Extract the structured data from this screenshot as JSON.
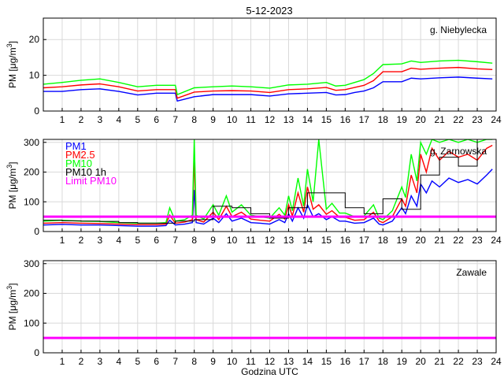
{
  "title": "5-12-2023",
  "colors": {
    "pm1": "#0000ff",
    "pm25": "#ff0000",
    "pm10": "#00ff00",
    "pm10_1h": "#000000",
    "limit": "#ff00ff",
    "grid": "#d9d9d9"
  },
  "chart_data": [
    {
      "type": "line",
      "station": "g. Niebylecka",
      "ylabel": "PM [μg/m³]",
      "xlabel": "",
      "xlim": [
        0,
        24
      ],
      "ylim": [
        0,
        26
      ],
      "xticks": [
        1,
        2,
        3,
        4,
        5,
        6,
        7,
        8,
        9,
        10,
        11,
        12,
        13,
        14,
        15,
        16,
        17,
        18,
        19,
        20,
        21,
        22,
        23,
        24
      ],
      "yticks": [
        0,
        10,
        20
      ],
      "legend": [],
      "limit": null,
      "series": [
        {
          "name": "PM1",
          "key": "pm1",
          "x": [
            0,
            1,
            2,
            3,
            4,
            5,
            6,
            7,
            7.1,
            8,
            9,
            10,
            11,
            12,
            13,
            14,
            15,
            15.5,
            16,
            16.5,
            17,
            17.5,
            18,
            19,
            19.5,
            20,
            21,
            22,
            23,
            23.8
          ],
          "y": [
            5.5,
            5.5,
            6,
            6.2,
            5.5,
            4.5,
            5,
            5,
            2.8,
            4,
            4.6,
            4.6,
            4.6,
            4.2,
            4.8,
            5,
            5.2,
            4.5,
            4.6,
            5.2,
            5.6,
            6.5,
            8.2,
            8.2,
            9.2,
            9,
            9.3,
            9.5,
            9.2,
            9
          ]
        },
        {
          "name": "PM2.5",
          "key": "pm25",
          "x": [
            0,
            1,
            2,
            3,
            4,
            5,
            6,
            7,
            7.1,
            8,
            9,
            10,
            11,
            12,
            13,
            14,
            15,
            15.5,
            16,
            16.5,
            17,
            17.5,
            18,
            19,
            19.5,
            20,
            21,
            22,
            23,
            23.8
          ],
          "y": [
            6.5,
            6.8,
            7.3,
            7.6,
            6.8,
            5.6,
            6,
            6,
            3.6,
            5.3,
            5.6,
            5.7,
            5.6,
            5.2,
            6,
            6.2,
            6.6,
            5.8,
            6,
            6.6,
            7.2,
            8.5,
            11,
            11,
            12,
            11.7,
            12,
            12.2,
            11.8,
            11.6
          ]
        },
        {
          "name": "PM10",
          "key": "pm10",
          "x": [
            0,
            1,
            2,
            3,
            4,
            5,
            6,
            7,
            7.1,
            8,
            9,
            10,
            11,
            12,
            13,
            14,
            15,
            15.5,
            16,
            16.5,
            17,
            17.5,
            18,
            19,
            19.5,
            20,
            21,
            22,
            23,
            23.8
          ],
          "y": [
            7.5,
            8,
            8.6,
            9,
            8,
            6.8,
            7.2,
            7.2,
            4.6,
            6.5,
            6.8,
            7,
            6.8,
            6.4,
            7.3,
            7.5,
            8,
            7,
            7.2,
            8,
            8.8,
            10.5,
            13,
            13.2,
            14,
            13.6,
            14,
            14.2,
            13.8,
            13.4
          ]
        }
      ]
    },
    {
      "type": "line",
      "station": "g. Zarnowska",
      "ylabel": "PM [μg/m³]",
      "xlabel": "",
      "xlim": [
        0,
        24
      ],
      "ylim": [
        0,
        310
      ],
      "xticks": [
        1,
        2,
        3,
        4,
        5,
        6,
        7,
        8,
        9,
        10,
        11,
        12,
        13,
        14,
        15,
        16,
        17,
        18,
        19,
        20,
        21,
        22,
        23,
        24
      ],
      "yticks": [
        0,
        100,
        200,
        300
      ],
      "legend": [
        "PM1",
        "PM2.5",
        "PM10",
        "PM10 1h",
        "Limit PM10"
      ],
      "limit": 50,
      "series": [
        {
          "name": "PM1",
          "key": "pm1",
          "x": [
            0,
            1,
            2,
            3,
            4,
            5,
            6,
            6.5,
            6.7,
            7,
            7.5,
            7.9,
            8,
            8.1,
            8.5,
            9,
            9.3,
            9.7,
            10,
            10.5,
            11,
            11.5,
            12,
            12.5,
            12.8,
            13,
            13.2,
            13.5,
            13.8,
            14,
            14.3,
            14.6,
            15,
            15.3,
            15.7,
            16,
            16.5,
            17,
            17.5,
            17.8,
            18,
            18.5,
            19,
            19.2,
            19.5,
            19.8,
            20,
            20.3,
            20.6,
            21,
            21.5,
            22,
            22.5,
            23,
            23.5,
            23.8
          ],
          "y": [
            22,
            24,
            22,
            22,
            20,
            18,
            18,
            20,
            38,
            22,
            25,
            30,
            140,
            30,
            25,
            45,
            30,
            60,
            35,
            45,
            30,
            28,
            25,
            40,
            30,
            60,
            35,
            80,
            45,
            90,
            50,
            60,
            40,
            50,
            35,
            35,
            28,
            30,
            45,
            25,
            22,
            35,
            80,
            60,
            120,
            85,
            160,
            130,
            170,
            150,
            180,
            165,
            175,
            160,
            190,
            210
          ]
        },
        {
          "name": "PM2.5",
          "key": "pm25",
          "x": [
            0,
            1,
            2,
            3,
            4,
            5,
            6,
            6.5,
            6.7,
            7,
            7.5,
            7.9,
            8,
            8.1,
            8.5,
            9,
            9.3,
            9.7,
            10,
            10.5,
            11,
            11.5,
            12,
            12.5,
            12.8,
            13,
            13.2,
            13.5,
            13.8,
            14,
            14.3,
            14.6,
            15,
            15.3,
            15.7,
            16,
            16.5,
            17,
            17.5,
            17.8,
            18,
            18.5,
            19,
            19.2,
            19.5,
            19.8,
            20,
            20.3,
            20.6,
            21,
            21.5,
            22,
            22.5,
            23,
            23.5,
            23.8
          ],
          "y": [
            28,
            30,
            28,
            27,
            25,
            23,
            23,
            25,
            55,
            28,
            32,
            40,
            250,
            40,
            32,
            65,
            40,
            85,
            50,
            65,
            42,
            38,
            35,
            58,
            42,
            90,
            52,
            130,
            65,
            150,
            75,
            90,
            58,
            70,
            48,
            48,
            38,
            40,
            65,
            35,
            30,
            50,
            110,
            85,
            190,
            130,
            260,
            200,
            280,
            240,
            270,
            250,
            260,
            240,
            280,
            290
          ]
        },
        {
          "name": "PM10",
          "key": "pm10",
          "x": [
            0,
            1,
            2,
            3,
            4,
            5,
            6,
            6.5,
            6.7,
            7,
            7.5,
            7.9,
            8,
            8.1,
            8.5,
            9,
            9.3,
            9.7,
            10,
            10.5,
            11,
            11.5,
            12,
            12.5,
            12.8,
            13,
            13.2,
            13.5,
            13.8,
            14,
            14.3,
            14.6,
            15,
            15.3,
            15.7,
            16,
            16.5,
            17,
            17.5,
            17.8,
            18,
            18.5,
            19,
            19.2,
            19.5,
            19.8,
            20,
            20.3,
            20.6,
            21,
            21.5,
            22,
            22.5,
            23,
            23.5,
            23.8
          ],
          "y": [
            35,
            38,
            35,
            34,
            30,
            28,
            28,
            30,
            80,
            35,
            40,
            55,
            310,
            55,
            42,
            90,
            55,
            120,
            65,
            90,
            55,
            50,
            45,
            80,
            55,
            120,
            70,
            180,
            85,
            210,
            100,
            310,
            75,
            95,
            62,
            62,
            50,
            52,
            90,
            45,
            40,
            70,
            150,
            115,
            260,
            170,
            300,
            260,
            310,
            300,
            310,
            300,
            310,
            300,
            310,
            310
          ]
        },
        {
          "name": "PM10 1h",
          "key": "pm10_1h",
          "step": true,
          "x": [
            0,
            1,
            2,
            3,
            4,
            5,
            6,
            7,
            8,
            9,
            10,
            11,
            12,
            13,
            14,
            15,
            16,
            17,
            18,
            19,
            20,
            21,
            22,
            23,
            24
          ],
          "y": [
            38,
            36,
            35,
            34,
            30,
            28,
            28,
            35,
            40,
            85,
            80,
            60,
            45,
            80,
            130,
            130,
            80,
            60,
            110,
            75,
            190,
            250,
            220,
            310,
            310
          ]
        }
      ]
    },
    {
      "type": "line",
      "station": "Zawale",
      "ylabel": "PM [μg/m³]",
      "xlabel": "Godzina UTC",
      "xlim": [
        0,
        24
      ],
      "ylim": [
        0,
        310
      ],
      "xticks": [
        1,
        2,
        3,
        4,
        5,
        6,
        7,
        8,
        9,
        10,
        11,
        12,
        13,
        14,
        15,
        16,
        17,
        18,
        19,
        20,
        21,
        22,
        23,
        24
      ],
      "yticks": [
        0,
        100,
        200,
        300
      ],
      "legend": [],
      "limit": 50,
      "series": []
    }
  ]
}
